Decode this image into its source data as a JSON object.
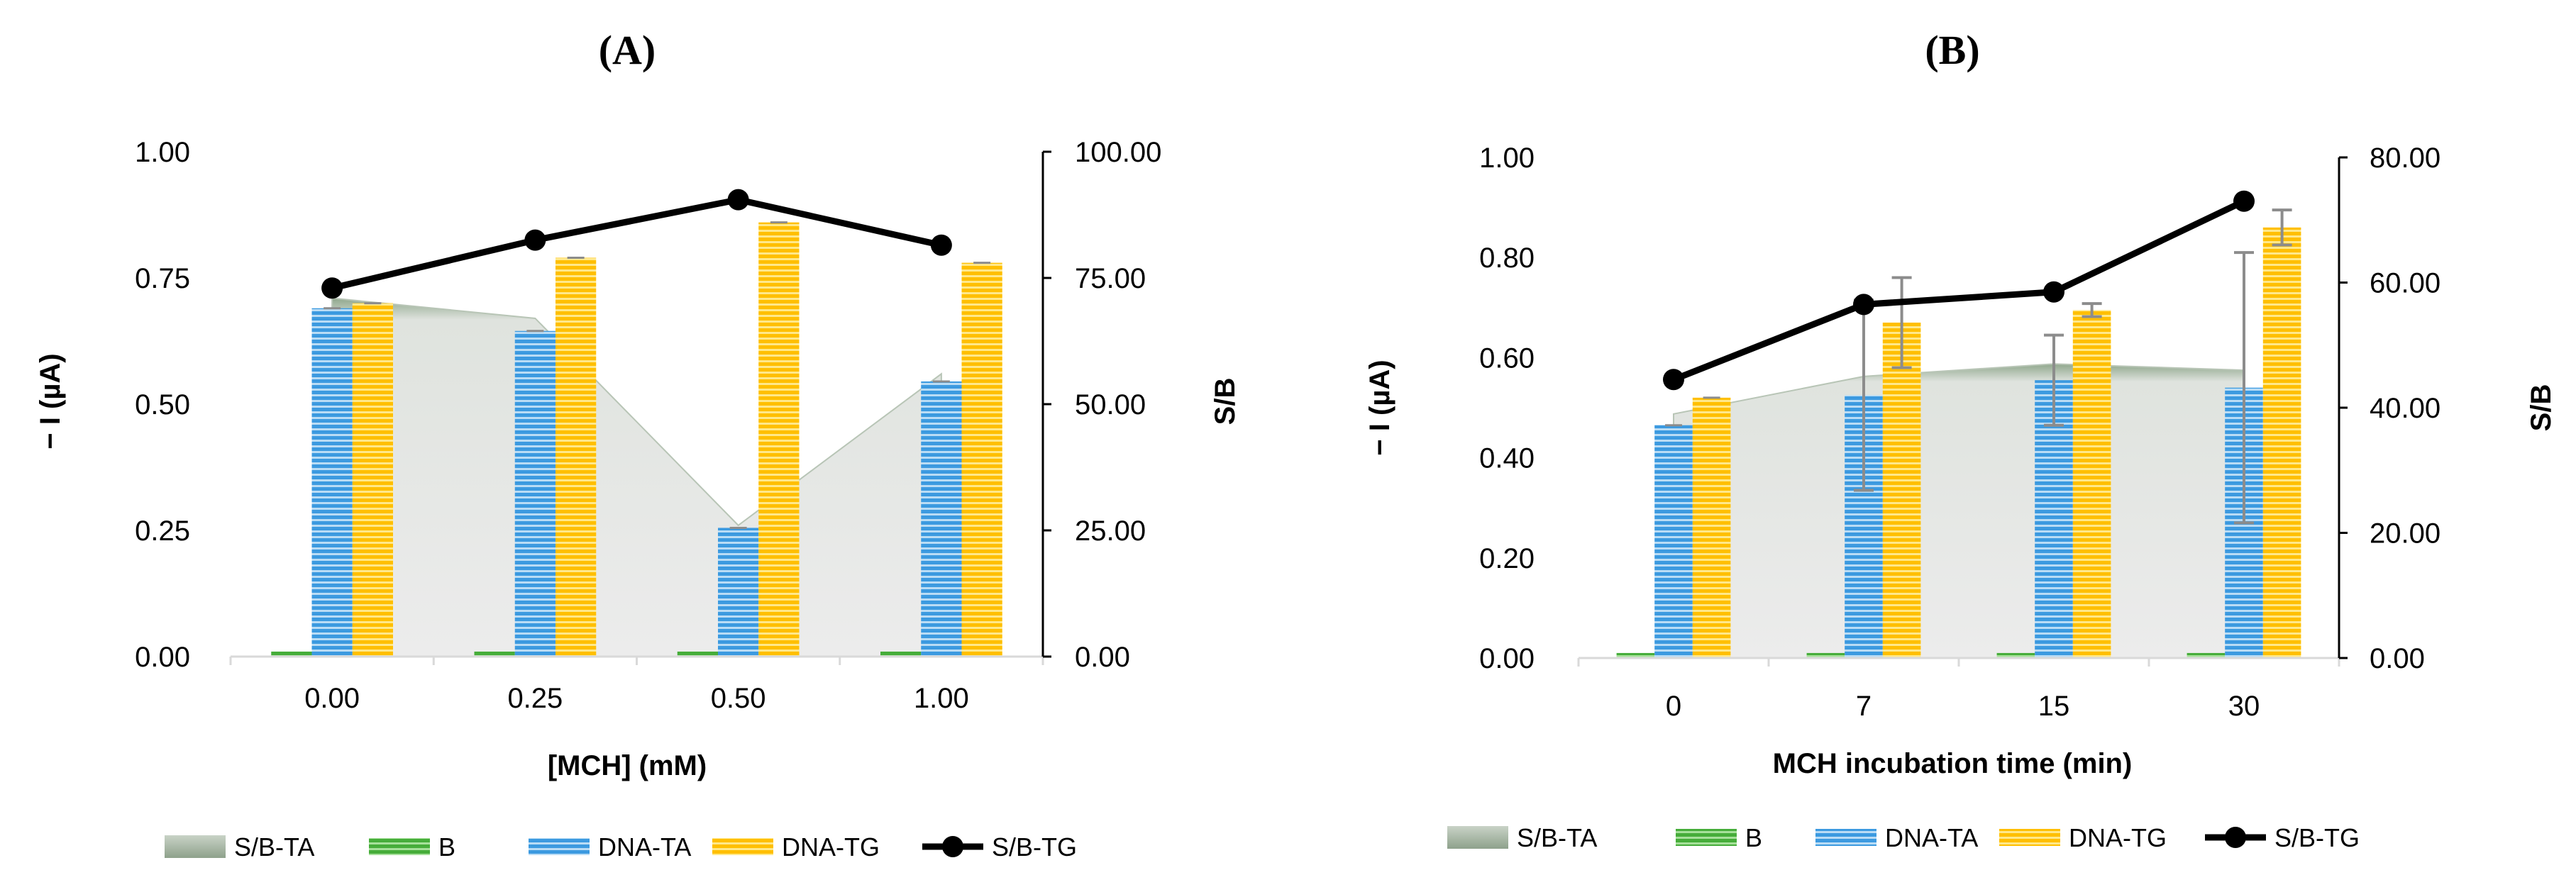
{
  "chart_data": [
    {
      "type": "bar",
      "panel_label": "(A)",
      "xlabel": "[MCH] (mM)",
      "ylabel": "− I (µA)",
      "y2label": "S/B",
      "categories": [
        "0.00",
        "0.25",
        "0.50",
        "1.00"
      ],
      "ylim": [
        0,
        1
      ],
      "yticks": [
        "0.00",
        "0.25",
        "0.50",
        "0.75",
        "1.00"
      ],
      "y2lim": [
        0,
        100
      ],
      "y2ticks": [
        "0.00",
        "25.00",
        "50.00",
        "75.00",
        "100.00"
      ],
      "series": [
        {
          "name": "S/B-TA",
          "kind": "area",
          "axis": "right",
          "color": "#a9bda6",
          "values": [
            71,
            67,
            26,
            56
          ]
        },
        {
          "name": "B",
          "kind": "bar",
          "axis": "left",
          "color": "#5bbf4a",
          "values": [
            0.01,
            0.01,
            0.01,
            0.01
          ]
        },
        {
          "name": "DNA-TA",
          "kind": "bar",
          "axis": "left",
          "color": "#3c9ae0",
          "values": [
            0.69,
            0.645,
            0.255,
            0.545
          ]
        },
        {
          "name": "DNA-TG",
          "kind": "bar",
          "axis": "left",
          "color": "#ffc61a",
          "values": [
            0.7,
            0.79,
            0.86,
            0.78
          ]
        },
        {
          "name": "S/B-TG",
          "kind": "line",
          "axis": "right",
          "color": "#000000",
          "values": [
            73,
            82.5,
            90.5,
            81.5
          ]
        }
      ],
      "legend": [
        "S/B-TA",
        "B",
        "DNA-TA",
        "DNA-TG",
        "S/B-TG"
      ]
    },
    {
      "type": "bar",
      "panel_label": "(B)",
      "xlabel": "MCH incubation time (min)",
      "ylabel": "− I (µA)",
      "y2label": "S/B",
      "categories": [
        "0",
        "7",
        "15",
        "30"
      ],
      "ylim": [
        0,
        1
      ],
      "yticks": [
        "0.00",
        "0.20",
        "0.40",
        "0.60",
        "0.80",
        "1.00"
      ],
      "y2lim": [
        0,
        80
      ],
      "y2ticks": [
        "0.00",
        "20.00",
        "40.00",
        "60.00",
        "80.00"
      ],
      "series": [
        {
          "name": "S/B-TA",
          "kind": "area",
          "axis": "right",
          "color": "#a9bda6",
          "values": [
            39,
            45,
            47,
            46
          ]
        },
        {
          "name": "B",
          "kind": "bar",
          "axis": "left",
          "color": "#5bbf4a",
          "values": [
            0.01,
            0.01,
            0.01,
            0.01
          ]
        },
        {
          "name": "DNA-TA",
          "kind": "bar",
          "axis": "left",
          "color": "#3c9ae0",
          "values": [
            0.465,
            0.525,
            0.555,
            0.54
          ],
          "errors": [
            0,
            0.19,
            0.09,
            0.27
          ]
        },
        {
          "name": "DNA-TG",
          "kind": "bar",
          "axis": "left",
          "color": "#ffc61a",
          "values": [
            0.52,
            0.67,
            0.695,
            0.86
          ],
          "errors": [
            0,
            0.09,
            0.013,
            0.035
          ]
        },
        {
          "name": "S/B-TG",
          "kind": "line",
          "axis": "right",
          "color": "#000000",
          "values": [
            44.5,
            56.5,
            58.5,
            73
          ]
        }
      ],
      "legend": [
        "S/B-TA",
        "B",
        "DNA-TA",
        "DNA-TG",
        "S/B-TG"
      ]
    }
  ]
}
